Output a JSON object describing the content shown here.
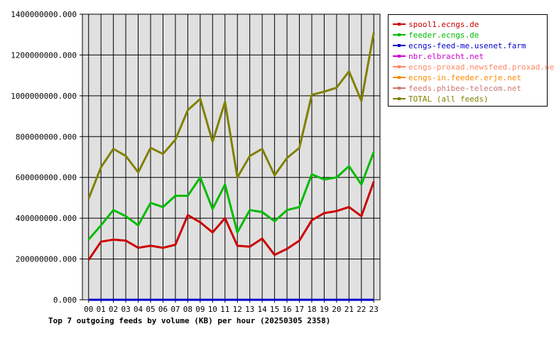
{
  "chart_data": {
    "type": "line",
    "title": "Top 7 outgoing feeds by volume (KB) per hour (20250305 2358)",
    "categories": [
      "00",
      "01",
      "02",
      "03",
      "04",
      "05",
      "06",
      "07",
      "08",
      "09",
      "10",
      "11",
      "12",
      "13",
      "14",
      "15",
      "16",
      "17",
      "18",
      "19",
      "20",
      "21",
      "22",
      "23"
    ],
    "ylim": [
      0,
      1400000000
    ],
    "yticks": [
      0,
      200000000,
      400000000,
      600000000,
      800000000,
      1000000000,
      1200000000,
      1400000000
    ],
    "ytick_labels": [
      "0.000",
      "200000000.000",
      "400000000.000",
      "600000000.000",
      "800000000.000",
      "1000000000.000",
      "1200000000.000",
      "1400000000.000"
    ],
    "grid": true,
    "legend_position": "right",
    "series": [
      {
        "name": "spool1.ecngs.de",
        "color": "#cc0000",
        "values": [
          195000000,
          285000000,
          295000000,
          290000000,
          255000000,
          265000000,
          255000000,
          270000000,
          415000000,
          380000000,
          330000000,
          400000000,
          265000000,
          260000000,
          300000000,
          220000000,
          250000000,
          290000000,
          390000000,
          425000000,
          435000000,
          455000000,
          410000000,
          580000000
        ]
      },
      {
        "name": "feeder.ecngs.de",
        "color": "#00bb00",
        "values": [
          295000000,
          365000000,
          440000000,
          410000000,
          365000000,
          475000000,
          455000000,
          510000000,
          510000000,
          600000000,
          445000000,
          565000000,
          330000000,
          440000000,
          430000000,
          385000000,
          440000000,
          455000000,
          615000000,
          590000000,
          600000000,
          655000000,
          565000000,
          725000000
        ]
      },
      {
        "name": "ecngs-feed-me.usenet.farm",
        "color": "#0000cc",
        "values": [
          0,
          0,
          0,
          0,
          0,
          0,
          0,
          0,
          0,
          0,
          0,
          0,
          0,
          0,
          0,
          0,
          0,
          0,
          0,
          0,
          0,
          0,
          0,
          0
        ]
      },
      {
        "name": "nbr.elbracht.net",
        "color": "#cc00cc",
        "values": [
          0,
          0,
          0,
          0,
          0,
          0,
          0,
          0,
          0,
          0,
          0,
          0,
          0,
          0,
          0,
          0,
          0,
          0,
          0,
          0,
          0,
          0,
          0,
          0
        ]
      },
      {
        "name": "ecngs-proxad.newsfeed.proxad.net",
        "color": "#ff8866",
        "values": [
          0,
          0,
          0,
          0,
          0,
          0,
          0,
          0,
          0,
          0,
          0,
          0,
          0,
          0,
          0,
          0,
          0,
          0,
          0,
          0,
          0,
          0,
          0,
          0
        ]
      },
      {
        "name": "ecngs-in.feeder.erje.net",
        "color": "#ff8800",
        "values": [
          0,
          0,
          0,
          0,
          0,
          0,
          0,
          0,
          0,
          0,
          0,
          0,
          0,
          0,
          0,
          0,
          0,
          0,
          0,
          0,
          0,
          0,
          0,
          0
        ]
      },
      {
        "name": "feeds.phibee-telecom.net",
        "color": "#cc7777",
        "values": [
          0,
          0,
          0,
          0,
          0,
          0,
          0,
          0,
          0,
          0,
          0,
          0,
          0,
          0,
          0,
          0,
          0,
          0,
          0,
          0,
          0,
          0,
          0,
          0
        ]
      },
      {
        "name": "TOTAL (all feeds)",
        "color": "#808000",
        "values": [
          495000000,
          650000000,
          740000000,
          705000000,
          625000000,
          745000000,
          715000000,
          785000000,
          930000000,
          985000000,
          775000000,
          970000000,
          600000000,
          705000000,
          740000000,
          610000000,
          695000000,
          745000000,
          1005000000,
          1020000000,
          1040000000,
          1120000000,
          975000000,
          1310000000
        ]
      }
    ]
  }
}
